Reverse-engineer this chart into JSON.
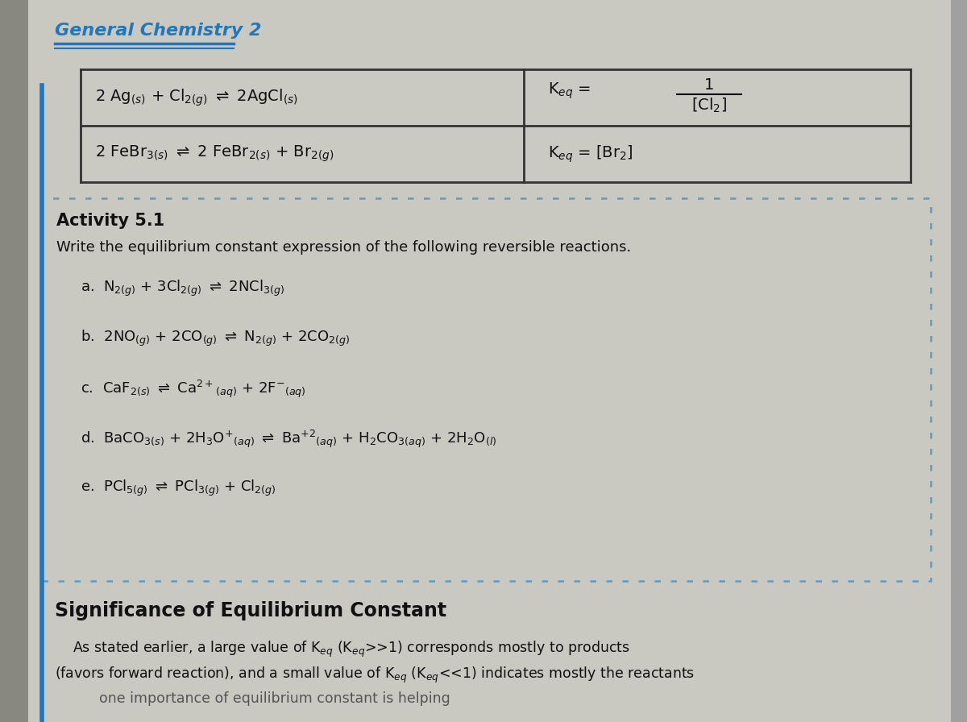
{
  "bg_outer": "#a0a0a0",
  "bg_page": "#d0cfc8",
  "bg_content": "#cccbc4",
  "header_text": "General Chemistry 2",
  "header_color": "#2277bb",
  "blue_line_color": "#2277bb",
  "table_bg": "#c8c7c0",
  "table_border": "#333333",
  "text_color": "#111111",
  "dot_border_color": "#6699bb",
  "activity_title": "Activity 5.1",
  "activity_instruction": "Write the equilibrium constant expression of the following reversible reactions.",
  "reactions": [
    "a.  N$_{2(g)}$ + 3Cl$_{2(g)}$ $\\rightleftharpoons$ 2NCl$_{3(g)}$",
    "b.  2NO$_{(g)}$ + 2CO$_{(g)}$ $\\rightleftharpoons$ N$_{2(g)}$ + 2CO$_{2(g)}$",
    "c.  CaF$_{2(s)}$ $\\rightleftharpoons$ Ca$^{2+}$$_{(aq)}$ + 2F$^{-}$$_{(aq)}$",
    "d.  BaCO$_{3(s)}$ + 2H$_3$O$^{+}$$_{(aq)}$ $\\rightleftharpoons$ Ba$^{+2}$$_{(aq)}$ + H$_2$CO$_{3(aq)}$ + 2H$_2$O$_{(l)}$",
    "e.  PCl$_{5(g)}$ $\\rightleftharpoons$ PCl$_{3(g)}$ + Cl$_{2(g)}$"
  ],
  "significance_title": "Significance of Equilibrium Constant",
  "sig_line1": "    As stated earlier, a large value of K$_{eq}$ (K$_{eq}$>>1) corresponds mostly to products",
  "sig_line2": "(favors forward reaction), and a small value of K$_{eq}$ (K$_{eq}$<<1) indicates mostly the reactants",
  "sig_line3": "          one importance of equilibrium constant is helping"
}
